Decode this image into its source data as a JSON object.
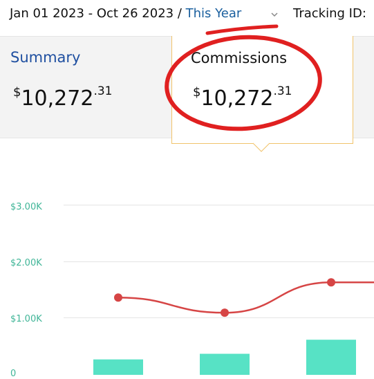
{
  "header": {
    "date_range": "Jan 01 2023 - Oct 26 2023 / ",
    "range_label": "This Year",
    "tracking_label": "Tracking ID:"
  },
  "summary": {
    "label": "Summary",
    "currency": "$",
    "whole": "10,272",
    "cents": ".31"
  },
  "commissions": {
    "label": "Commissions",
    "currency": "$",
    "whole": "10,272",
    "cents": ".31"
  },
  "icons": {
    "dropdown": "chevron-down-icon"
  },
  "colors": {
    "bar": "#57e2c5",
    "line": "#d64545",
    "annotation": "#e02020",
    "card_border": "#f1c36a",
    "link": "#1a5f9e",
    "summary_link": "#1f4fa0",
    "tick": "#3fb597"
  },
  "chart_data": {
    "type": "bar",
    "y_ticks": [
      "$3.00K",
      "$2.00K",
      "$1.00K",
      "0"
    ],
    "ylim": [
      0,
      3000
    ],
    "grid": true,
    "series": [
      {
        "type": "bar",
        "values": [
          250,
          350,
          600
        ]
      },
      {
        "type": "line",
        "values": [
          1350,
          1080,
          1620,
          1620
        ]
      }
    ]
  }
}
